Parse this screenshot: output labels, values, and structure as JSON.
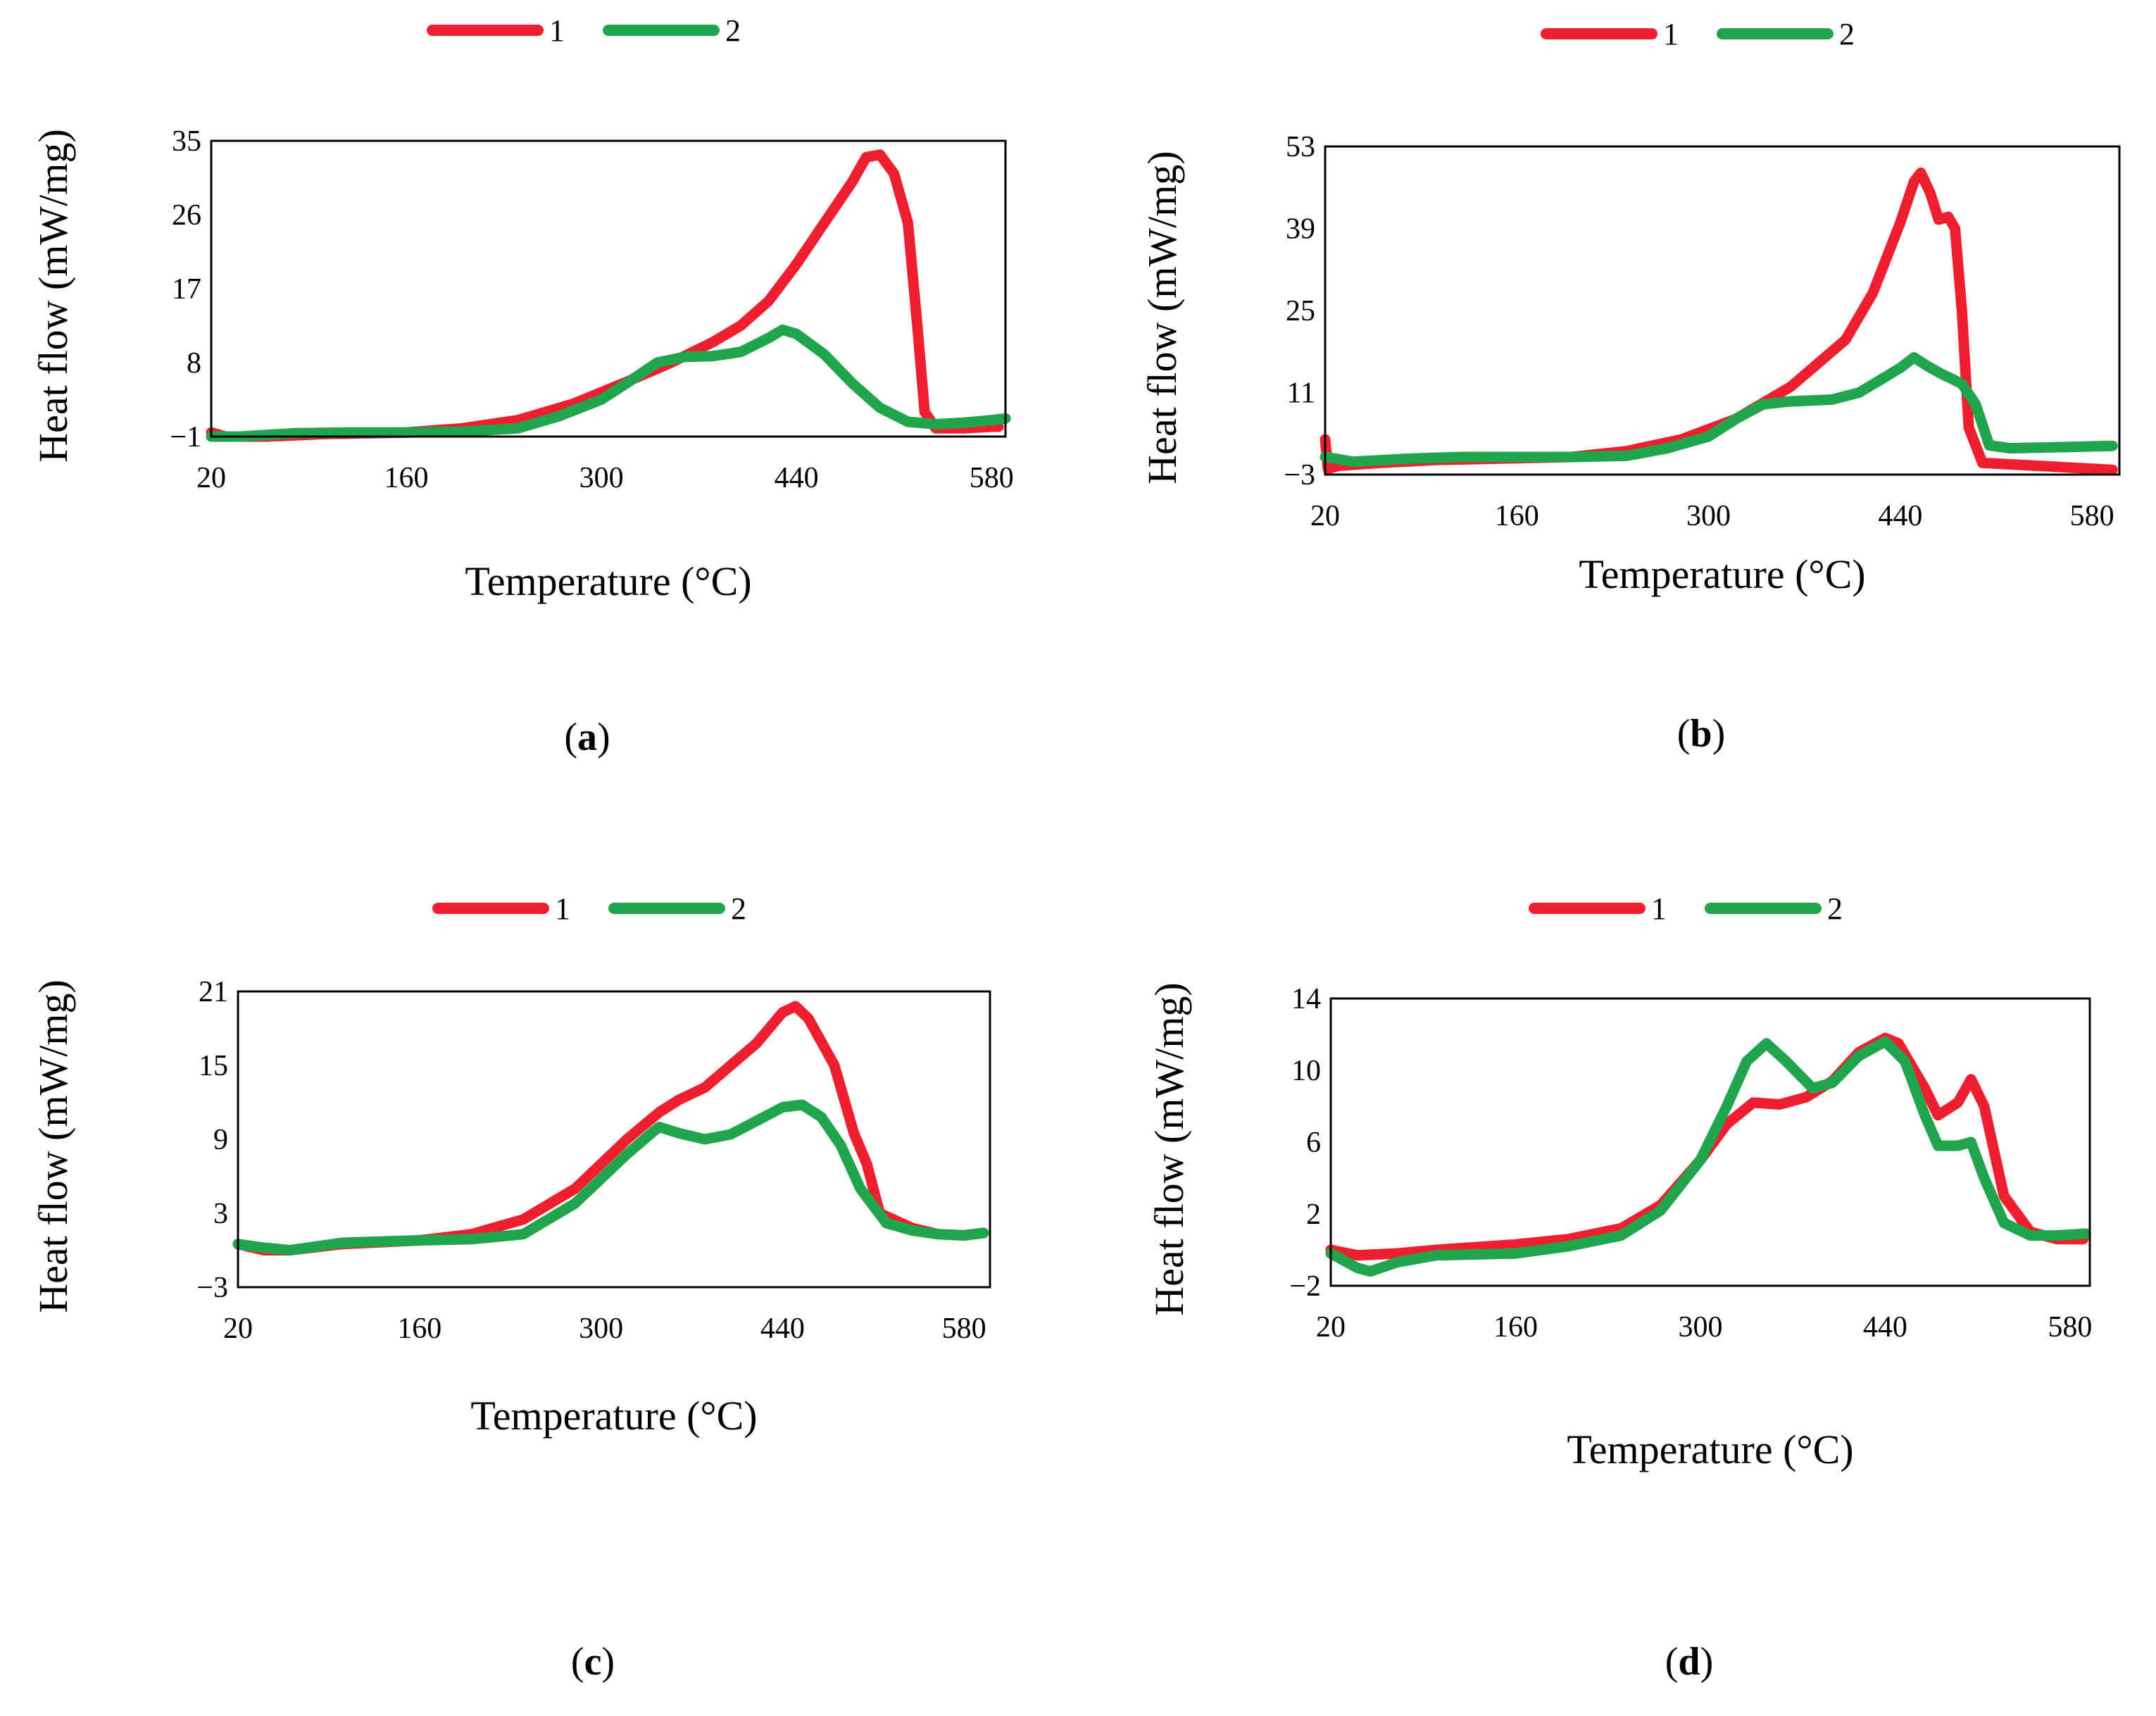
{
  "colors": {
    "series1": "#f01f2f",
    "series2": "#21a54c"
  },
  "chart_data": [
    {
      "id": "a",
      "type": "line",
      "panel_label": "a",
      "xlabel": "Temperature (°C)",
      "ylabel": "Heat flow (mW/mg)",
      "xlim": [
        20,
        590
      ],
      "ylim": [
        -1,
        35
      ],
      "x_ticks": [
        20,
        160,
        300,
        440,
        580
      ],
      "y_ticks": [
        -1,
        8,
        17,
        26,
        35
      ],
      "legend": [
        "1",
        "2"
      ],
      "series": [
        {
          "name": "1",
          "color": "#f01f2f",
          "points": [
            [
              20,
              -0.5
            ],
            [
              30,
              -1
            ],
            [
              60,
              -1
            ],
            [
              100,
              -0.7
            ],
            [
              160,
              -0.5
            ],
            [
              200,
              0
            ],
            [
              240,
              1
            ],
            [
              280,
              3
            ],
            [
              320,
              5.8
            ],
            [
              350,
              8
            ],
            [
              380,
              10.5
            ],
            [
              400,
              12.5
            ],
            [
              420,
              15.5
            ],
            [
              440,
              20
            ],
            [
              460,
              25
            ],
            [
              480,
              30
            ],
            [
              490,
              33
            ],
            [
              500,
              33.3
            ],
            [
              510,
              31
            ],
            [
              520,
              25
            ],
            [
              527,
              12
            ],
            [
              532,
              2
            ],
            [
              540,
              0
            ],
            [
              560,
              0
            ],
            [
              580,
              0.2
            ],
            [
              585,
              0.2
            ]
          ]
        },
        {
          "name": "2",
          "color": "#21a54c",
          "points": [
            [
              20,
              -1
            ],
            [
              40,
              -1
            ],
            [
              80,
              -0.6
            ],
            [
              120,
              -0.5
            ],
            [
              160,
              -0.5
            ],
            [
              200,
              -0.4
            ],
            [
              240,
              0
            ],
            [
              270,
              1.5
            ],
            [
              300,
              3.5
            ],
            [
              320,
              5.7
            ],
            [
              340,
              8
            ],
            [
              360,
              8.7
            ],
            [
              380,
              8.8
            ],
            [
              400,
              9.3
            ],
            [
              420,
              11
            ],
            [
              430,
              12
            ],
            [
              440,
              11.5
            ],
            [
              460,
              9
            ],
            [
              480,
              5.5
            ],
            [
              500,
              2.5
            ],
            [
              520,
              0.8
            ],
            [
              540,
              0.5
            ],
            [
              560,
              0.7
            ],
            [
              580,
              1
            ],
            [
              590,
              1.2
            ]
          ]
        }
      ]
    },
    {
      "id": "b",
      "type": "line",
      "panel_label": "b",
      "xlabel": "Temperature (°C)",
      "ylabel": "Heat flow (mW/mg)",
      "xlim": [
        20,
        600
      ],
      "ylim": [
        -3,
        53
      ],
      "x_ticks": [
        20,
        160,
        300,
        440,
        580
      ],
      "y_ticks": [
        -3,
        11,
        25,
        39,
        53
      ],
      "legend": [
        "1",
        "2"
      ],
      "series": [
        {
          "name": "1",
          "color": "#f01f2f",
          "points": [
            [
              20,
              3
            ],
            [
              22,
              -2
            ],
            [
              30,
              -1.5
            ],
            [
              60,
              -1
            ],
            [
              100,
              -0.5
            ],
            [
              160,
              -0.2
            ],
            [
              200,
              0
            ],
            [
              240,
              1
            ],
            [
              280,
              3
            ],
            [
              320,
              6.5
            ],
            [
              360,
              12
            ],
            [
              400,
              20
            ],
            [
              420,
              28
            ],
            [
              440,
              40
            ],
            [
              450,
              47
            ],
            [
              455,
              48.5
            ],
            [
              462,
              45
            ],
            [
              468,
              40.5
            ],
            [
              475,
              41
            ],
            [
              480,
              39
            ],
            [
              485,
              25
            ],
            [
              490,
              5
            ],
            [
              500,
              -1
            ],
            [
              540,
              -1.5
            ],
            [
              580,
              -2
            ],
            [
              595,
              -2.2
            ]
          ]
        },
        {
          "name": "2",
          "color": "#21a54c",
          "points": [
            [
              20,
              0
            ],
            [
              40,
              -0.8
            ],
            [
              80,
              -0.3
            ],
            [
              120,
              0
            ],
            [
              160,
              0
            ],
            [
              200,
              0
            ],
            [
              240,
              0.2
            ],
            [
              270,
              1.5
            ],
            [
              300,
              3.5
            ],
            [
              320,
              6.5
            ],
            [
              340,
              9
            ],
            [
              360,
              9.5
            ],
            [
              390,
              9.8
            ],
            [
              410,
              11
            ],
            [
              430,
              13.8
            ],
            [
              440,
              15.2
            ],
            [
              450,
              17
            ],
            [
              460,
              15.5
            ],
            [
              470,
              14.2
            ],
            [
              485,
              12.5
            ],
            [
              495,
              9
            ],
            [
              505,
              2
            ],
            [
              520,
              1.5
            ],
            [
              560,
              1.7
            ],
            [
              595,
              1.9
            ]
          ]
        }
      ]
    },
    {
      "id": "c",
      "type": "line",
      "panel_label": "c",
      "xlabel": "Temperature (°C)",
      "ylabel": "Heat flow (mW/mg)",
      "xlim": [
        20,
        600
      ],
      "ylim": [
        -3,
        21
      ],
      "x_ticks": [
        20,
        160,
        300,
        440,
        580
      ],
      "y_ticks": [
        -3,
        3,
        9,
        15,
        21
      ],
      "legend": [
        "1",
        "2"
      ],
      "series": [
        {
          "name": "1",
          "color": "#f01f2f",
          "points": [
            [
              20,
              0.5
            ],
            [
              40,
              0
            ],
            [
              60,
              0
            ],
            [
              100,
              0.5
            ],
            [
              160,
              0.8
            ],
            [
              200,
              1.3
            ],
            [
              240,
              2.5
            ],
            [
              280,
              5
            ],
            [
              320,
              9
            ],
            [
              345,
              11.2
            ],
            [
              360,
              12.2
            ],
            [
              380,
              13.2
            ],
            [
              400,
              15
            ],
            [
              420,
              16.8
            ],
            [
              440,
              19.3
            ],
            [
              450,
              19.8
            ],
            [
              460,
              18.8
            ],
            [
              480,
              15
            ],
            [
              495,
              9.5
            ],
            [
              505,
              7
            ],
            [
              515,
              3
            ],
            [
              540,
              1.8
            ],
            [
              560,
              1.3
            ],
            [
              580,
              1.2
            ],
            [
              595,
              1.4
            ]
          ]
        },
        {
          "name": "2",
          "color": "#21a54c",
          "points": [
            [
              20,
              0.5
            ],
            [
              40,
              0.2
            ],
            [
              60,
              0
            ],
            [
              100,
              0.6
            ],
            [
              160,
              0.8
            ],
            [
              200,
              0.9
            ],
            [
              240,
              1.3
            ],
            [
              280,
              3.8
            ],
            [
              320,
              7.8
            ],
            [
              340,
              9.6
            ],
            [
              345,
              10
            ],
            [
              360,
              9.5
            ],
            [
              380,
              9
            ],
            [
              400,
              9.4
            ],
            [
              420,
              10.5
            ],
            [
              440,
              11.6
            ],
            [
              455,
              11.8
            ],
            [
              470,
              10.8
            ],
            [
              485,
              8.5
            ],
            [
              500,
              5
            ],
            [
              520,
              2.2
            ],
            [
              540,
              1.6
            ],
            [
              560,
              1.3
            ],
            [
              580,
              1.2
            ],
            [
              595,
              1.4
            ]
          ]
        }
      ]
    },
    {
      "id": "d",
      "type": "line",
      "panel_label": "d",
      "xlabel": "Temperature (°C)",
      "ylabel": "Heat flow (mW/mg)",
      "xlim": [
        20,
        595
      ],
      "ylim": [
        -2,
        14
      ],
      "x_ticks": [
        20,
        160,
        300,
        440,
        580
      ],
      "y_ticks": [
        -2,
        2,
        6,
        10,
        14
      ],
      "legend": [
        "1",
        "2"
      ],
      "series": [
        {
          "name": "1",
          "color": "#f01f2f",
          "points": [
            [
              20,
              0
            ],
            [
              40,
              -0.3
            ],
            [
              70,
              -0.2
            ],
            [
              100,
              0
            ],
            [
              160,
              0.3
            ],
            [
              200,
              0.6
            ],
            [
              240,
              1.2
            ],
            [
              270,
              2.5
            ],
            [
              300,
              5
            ],
            [
              320,
              7
            ],
            [
              340,
              8.2
            ],
            [
              360,
              8.1
            ],
            [
              380,
              8.5
            ],
            [
              400,
              9.4
            ],
            [
              420,
              11
            ],
            [
              440,
              11.8
            ],
            [
              450,
              11.5
            ],
            [
              470,
              9
            ],
            [
              480,
              7.5
            ],
            [
              495,
              8.2
            ],
            [
              505,
              9.5
            ],
            [
              515,
              8
            ],
            [
              530,
              3
            ],
            [
              550,
              1
            ],
            [
              570,
              0.6
            ],
            [
              590,
              0.6
            ]
          ]
        },
        {
          "name": "2",
          "color": "#21a54c",
          "points": [
            [
              20,
              -0.2
            ],
            [
              40,
              -1
            ],
            [
              50,
              -1.2
            ],
            [
              70,
              -0.7
            ],
            [
              100,
              -0.3
            ],
            [
              160,
              -0.2
            ],
            [
              200,
              0.2
            ],
            [
              240,
              0.8
            ],
            [
              270,
              2.2
            ],
            [
              300,
              5
            ],
            [
              320,
              8
            ],
            [
              335,
              10.5
            ],
            [
              350,
              11.5
            ],
            [
              365,
              10.5
            ],
            [
              385,
              9
            ],
            [
              400,
              9.3
            ],
            [
              420,
              10.8
            ],
            [
              440,
              11.6
            ],
            [
              455,
              10.5
            ],
            [
              470,
              7.5
            ],
            [
              480,
              5.8
            ],
            [
              495,
              5.8
            ],
            [
              505,
              6
            ],
            [
              515,
              4
            ],
            [
              530,
              1.5
            ],
            [
              550,
              0.8
            ],
            [
              570,
              0.8
            ],
            [
              592,
              0.9
            ]
          ]
        }
      ]
    }
  ]
}
